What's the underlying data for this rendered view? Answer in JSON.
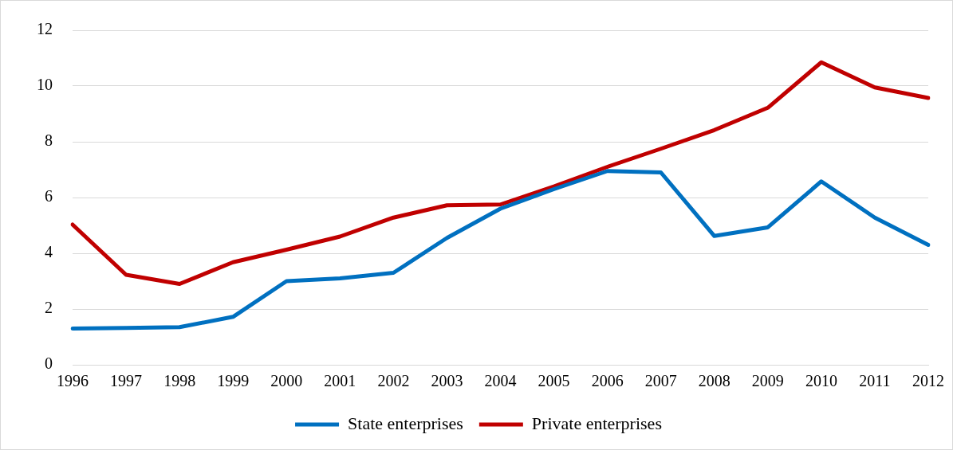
{
  "chart_data": {
    "type": "line",
    "categories": [
      "1996",
      "1997",
      "1998",
      "1999",
      "2000",
      "2001",
      "2002",
      "2003",
      "2004",
      "2005",
      "2006",
      "2007",
      "2008",
      "2009",
      "2010",
      "2011",
      "2012"
    ],
    "series": [
      {
        "name": "State enterprises",
        "color": "#0070c0",
        "values": [
          1.3,
          1.32,
          1.35,
          1.72,
          3.0,
          3.1,
          3.3,
          4.55,
          5.6,
          6.3,
          6.95,
          6.9,
          4.62,
          4.93,
          6.58,
          5.28,
          4.3
        ]
      },
      {
        "name": "Private enterprises",
        "color": "#c00000",
        "values": [
          5.03,
          3.23,
          2.9,
          3.68,
          4.13,
          4.6,
          5.28,
          5.72,
          5.75,
          6.4,
          7.1,
          7.75,
          8.42,
          9.22,
          10.85,
          9.95,
          9.57
        ]
      }
    ],
    "ylim": [
      0,
      12
    ],
    "yticks": [
      0,
      2,
      4,
      6,
      8,
      10,
      12
    ],
    "grid": "y",
    "legend": "bottom",
    "marker": "none",
    "line_style": "solid"
  }
}
